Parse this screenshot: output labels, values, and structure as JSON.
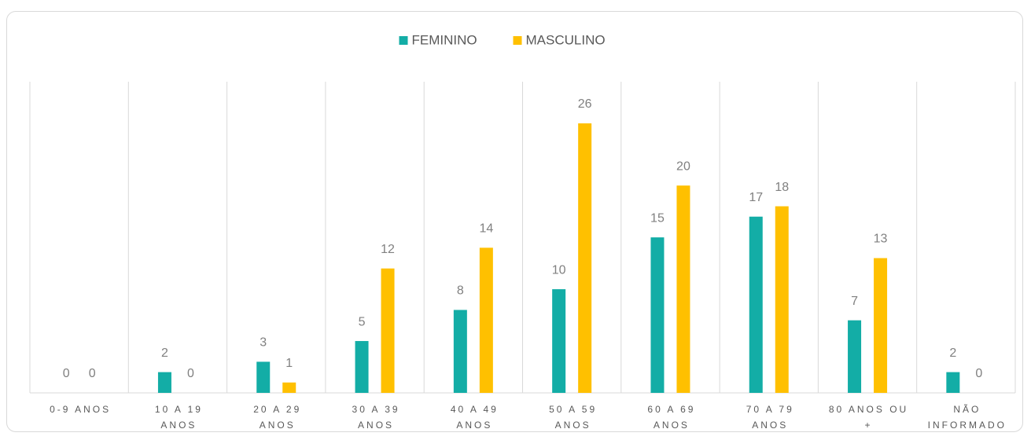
{
  "chart_data": {
    "type": "bar",
    "categories": [
      "0-9 ANOS",
      "10 A 19 ANOS",
      "20 A 29 ANOS",
      "30 A 39 ANOS",
      "40 A 49 ANOS",
      "50 A 59 ANOS",
      "60 A 69 ANOS",
      "70 A 79 ANOS",
      "80 ANOS OU +",
      "NÃO INFORMADO"
    ],
    "series": [
      {
        "name": "FEMININO",
        "color": "#13ada6",
        "values": [
          0,
          2,
          3,
          5,
          8,
          10,
          15,
          17,
          7,
          2
        ]
      },
      {
        "name": "MASCULINO",
        "color": "#ffc000",
        "values": [
          0,
          0,
          1,
          12,
          14,
          26,
          20,
          18,
          13,
          0
        ]
      }
    ],
    "grid": true,
    "legend": "top"
  }
}
